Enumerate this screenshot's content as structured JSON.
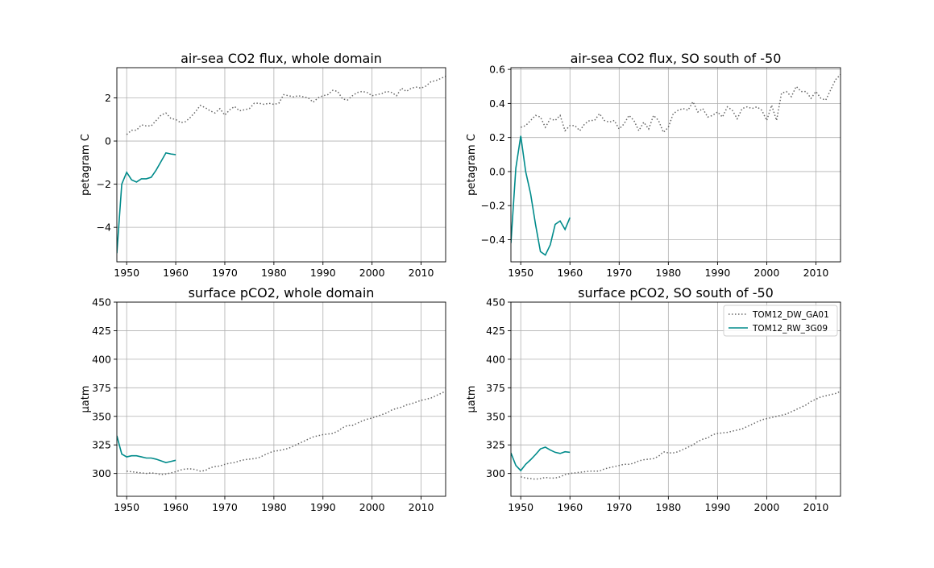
{
  "colors": {
    "dw": "#666666",
    "rw": "#008b8b",
    "grid": "#b0b0b0"
  },
  "legend_entries": [
    "TOM12_DW_GA01",
    "TOM12_RW_3G09"
  ],
  "chart_data": [
    {
      "type": "line",
      "title": "air-sea CO2 flux, whole domain",
      "ylabel": "petagram C",
      "xlim": [
        1948,
        2015
      ],
      "ylim": [
        -5.6,
        3.4
      ],
      "xticks": [
        1950,
        1960,
        1970,
        1980,
        1990,
        2000,
        2010
      ],
      "yticks": [
        -4,
        -2,
        0,
        2
      ],
      "ytick_labels": [
        "−4",
        "−2",
        "0",
        "2"
      ],
      "legend": false,
      "series": [
        {
          "name": "TOM12_DW_GA01",
          "style": "dotted",
          "x": [
            1950,
            1951,
            1952,
            1953,
            1954,
            1955,
            1956,
            1957,
            1958,
            1959,
            1960,
            1961,
            1962,
            1963,
            1964,
            1965,
            1966,
            1967,
            1968,
            1969,
            1970,
            1971,
            1972,
            1973,
            1974,
            1975,
            1976,
            1977,
            1978,
            1979,
            1980,
            1981,
            1982,
            1983,
            1984,
            1985,
            1986,
            1987,
            1988,
            1989,
            1990,
            1991,
            1992,
            1993,
            1994,
            1995,
            1996,
            1997,
            1998,
            1999,
            2000,
            2001,
            2002,
            2003,
            2004,
            2005,
            2006,
            2007,
            2008,
            2009,
            2010,
            2011,
            2012,
            2013,
            2014,
            2015
          ],
          "y": [
            0.3,
            0.5,
            0.5,
            0.75,
            0.7,
            0.7,
            0.95,
            1.2,
            1.3,
            1.05,
            1.0,
            0.85,
            0.9,
            1.1,
            1.35,
            1.65,
            1.55,
            1.4,
            1.3,
            1.5,
            1.2,
            1.45,
            1.6,
            1.4,
            1.45,
            1.5,
            1.75,
            1.75,
            1.7,
            1.75,
            1.7,
            1.75,
            2.15,
            2.1,
            2.05,
            2.1,
            2.05,
            2.0,
            1.8,
            2.0,
            2.1,
            2.15,
            2.35,
            2.3,
            1.95,
            1.9,
            2.1,
            2.25,
            2.3,
            2.25,
            2.1,
            2.15,
            2.2,
            2.3,
            2.25,
            2.1,
            2.45,
            2.3,
            2.45,
            2.5,
            2.45,
            2.55,
            2.75,
            2.8,
            2.9,
            3.0
          ]
        },
        {
          "name": "TOM12_RW_3G09",
          "style": "solid",
          "x": [
            1948,
            1949,
            1950,
            1951,
            1952,
            1953,
            1954,
            1955,
            1956,
            1957,
            1958,
            1959,
            1960
          ],
          "y": [
            -5.2,
            -2.0,
            -1.45,
            -1.8,
            -1.9,
            -1.75,
            -1.75,
            -1.68,
            -1.35,
            -0.95,
            -0.55,
            -0.6,
            -0.63
          ]
        }
      ]
    },
    {
      "type": "line",
      "title": "air-sea CO2 flux, SO south of -50",
      "ylabel": "petagram C",
      "xlim": [
        1948,
        2015
      ],
      "ylim": [
        -0.53,
        0.61
      ],
      "xticks": [
        1950,
        1960,
        1970,
        1980,
        1990,
        2000,
        2010
      ],
      "yticks": [
        -0.4,
        -0.2,
        0.0,
        0.2,
        0.4,
        0.6
      ],
      "ytick_labels": [
        "−0.4",
        "−0.2",
        "0.0",
        "0.2",
        "0.4",
        "0.6"
      ],
      "legend": false,
      "series": [
        {
          "name": "TOM12_DW_GA01",
          "style": "dotted",
          "x": [
            1950,
            1951,
            1952,
            1953,
            1954,
            1955,
            1956,
            1957,
            1958,
            1959,
            1960,
            1961,
            1962,
            1963,
            1964,
            1965,
            1966,
            1967,
            1968,
            1969,
            1970,
            1971,
            1972,
            1973,
            1974,
            1975,
            1976,
            1977,
            1978,
            1979,
            1980,
            1981,
            1982,
            1983,
            1984,
            1985,
            1986,
            1987,
            1988,
            1989,
            1990,
            1991,
            1992,
            1993,
            1994,
            1995,
            1996,
            1997,
            1998,
            1999,
            2000,
            2001,
            2002,
            2003,
            2004,
            2005,
            2006,
            2007,
            2008,
            2009,
            2010,
            2011,
            2012,
            2013,
            2014,
            2015
          ],
          "y": [
            0.26,
            0.27,
            0.3,
            0.33,
            0.32,
            0.26,
            0.31,
            0.3,
            0.33,
            0.24,
            0.27,
            0.27,
            0.24,
            0.28,
            0.3,
            0.3,
            0.34,
            0.3,
            0.29,
            0.3,
            0.25,
            0.28,
            0.33,
            0.3,
            0.24,
            0.29,
            0.25,
            0.33,
            0.3,
            0.23,
            0.26,
            0.34,
            0.36,
            0.37,
            0.36,
            0.41,
            0.35,
            0.37,
            0.32,
            0.33,
            0.35,
            0.32,
            0.38,
            0.36,
            0.31,
            0.37,
            0.38,
            0.37,
            0.38,
            0.36,
            0.3,
            0.39,
            0.3,
            0.46,
            0.47,
            0.44,
            0.5,
            0.47,
            0.47,
            0.43,
            0.47,
            0.43,
            0.42,
            0.48,
            0.54,
            0.57
          ]
        },
        {
          "name": "TOM12_RW_3G09",
          "style": "solid",
          "x": [
            1948,
            1949,
            1950,
            1951,
            1952,
            1953,
            1954,
            1955,
            1956,
            1957,
            1958,
            1959,
            1960
          ],
          "y": [
            -0.42,
            0.02,
            0.21,
            0.0,
            -0.13,
            -0.31,
            -0.47,
            -0.49,
            -0.43,
            -0.31,
            -0.29,
            -0.34,
            -0.27
          ]
        }
      ]
    },
    {
      "type": "line",
      "title": "surface pCO2, whole domain",
      "ylabel": "μatm",
      "xlim": [
        1948,
        2015
      ],
      "ylim": [
        280,
        450
      ],
      "xticks": [
        1950,
        1960,
        1970,
        1980,
        1990,
        2000,
        2010
      ],
      "yticks": [
        300,
        325,
        350,
        375,
        400,
        425,
        450
      ],
      "ytick_labels": [
        "300",
        "325",
        "350",
        "375",
        "400",
        "425",
        "450"
      ],
      "legend": false,
      "series": [
        {
          "name": "TOM12_DW_GA01",
          "style": "dotted",
          "x": [
            1950,
            1951,
            1952,
            1953,
            1954,
            1955,
            1956,
            1957,
            1958,
            1959,
            1960,
            1961,
            1962,
            1963,
            1964,
            1965,
            1966,
            1967,
            1968,
            1969,
            1970,
            1971,
            1972,
            1973,
            1974,
            1975,
            1976,
            1977,
            1978,
            1979,
            1980,
            1981,
            1982,
            1983,
            1984,
            1985,
            1986,
            1987,
            1988,
            1989,
            1990,
            1991,
            1992,
            1993,
            1994,
            1995,
            1996,
            1997,
            1998,
            1999,
            2000,
            2001,
            2002,
            2003,
            2004,
            2005,
            2006,
            2007,
            2008,
            2009,
            2010,
            2011,
            2012,
            2013,
            2014,
            2015
          ],
          "y": [
            302,
            301.5,
            301,
            300.5,
            300,
            300.5,
            300,
            299,
            299.5,
            300.5,
            301.5,
            303,
            304,
            304,
            303.5,
            302,
            302.5,
            305,
            306,
            306.5,
            308,
            309,
            309.5,
            311,
            312,
            312.5,
            313,
            314,
            316,
            318,
            319.5,
            320,
            321,
            322,
            324,
            326,
            328,
            330,
            332,
            333,
            334,
            334.5,
            335,
            337,
            340,
            342,
            342,
            344,
            346,
            347.5,
            348.5,
            350,
            351.5,
            353,
            355.5,
            357,
            358,
            360,
            361,
            362.5,
            364,
            365,
            366,
            368,
            370,
            372
          ]
        },
        {
          "name": "TOM12_RW_3G09",
          "style": "solid",
          "x": [
            1948,
            1949,
            1950,
            1951,
            1952,
            1953,
            1954,
            1955,
            1956,
            1957,
            1958,
            1959,
            1960
          ],
          "y": [
            333,
            317,
            314.5,
            315.5,
            315.5,
            314.5,
            313.5,
            313.5,
            312.5,
            311,
            309.5,
            310.5,
            311.5
          ]
        }
      ]
    },
    {
      "type": "line",
      "title": "surface pCO2, SO south of -50",
      "ylabel": "μatm",
      "xlim": [
        1948,
        2015
      ],
      "ylim": [
        280,
        450
      ],
      "xticks": [
        1950,
        1960,
        1970,
        1980,
        1990,
        2000,
        2010
      ],
      "yticks": [
        300,
        325,
        350,
        375,
        400,
        425,
        450
      ],
      "ytick_labels": [
        "300",
        "325",
        "350",
        "375",
        "400",
        "425",
        "450"
      ],
      "legend": "top-right",
      "series": [
        {
          "name": "TOM12_DW_GA01",
          "style": "dotted",
          "x": [
            1950,
            1951,
            1952,
            1953,
            1954,
            1955,
            1956,
            1957,
            1958,
            1959,
            1960,
            1961,
            1962,
            1963,
            1964,
            1965,
            1966,
            1967,
            1968,
            1969,
            1970,
            1971,
            1972,
            1973,
            1974,
            1975,
            1976,
            1977,
            1978,
            1979,
            1980,
            1981,
            1982,
            1983,
            1984,
            1985,
            1986,
            1987,
            1988,
            1989,
            1990,
            1991,
            1992,
            1993,
            1994,
            1995,
            1996,
            1997,
            1998,
            1999,
            2000,
            2001,
            2002,
            2003,
            2004,
            2005,
            2006,
            2007,
            2008,
            2009,
            2010,
            2011,
            2012,
            2013,
            2014,
            2015
          ],
          "y": [
            297,
            296,
            295.5,
            295,
            295.5,
            296.5,
            296,
            296,
            297,
            299,
            300,
            300.5,
            301,
            301.5,
            302,
            302,
            302,
            304,
            305,
            306,
            307,
            308,
            308,
            309,
            311,
            312,
            312.5,
            313,
            315,
            319,
            318,
            318,
            319,
            321,
            323,
            325,
            328,
            330,
            331,
            334,
            335,
            335.5,
            336,
            337,
            338,
            339,
            341,
            343,
            345,
            347,
            348,
            349,
            350,
            351,
            352,
            354,
            356,
            358,
            360,
            363,
            365,
            367,
            368,
            369,
            370,
            372
          ]
        },
        {
          "name": "TOM12_RW_3G09",
          "style": "solid",
          "x": [
            1948,
            1949,
            1950,
            1951,
            1952,
            1953,
            1954,
            1955,
            1956,
            1957,
            1958,
            1959,
            1960
          ],
          "y": [
            318,
            307,
            302.5,
            308,
            312,
            316.5,
            321.5,
            323,
            320.5,
            318.5,
            317.5,
            319,
            318.5
          ]
        }
      ]
    }
  ]
}
